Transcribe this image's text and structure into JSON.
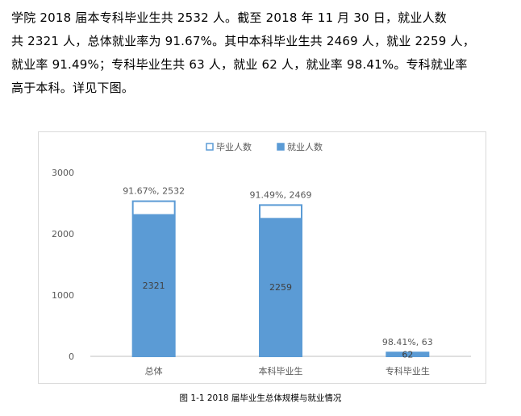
{
  "paragraph": {
    "lines": [
      "学院 2018 届本专科毕业生共 2532 人。截至 2018 年 11 月 30 日，就业人数",
      "共 2321 人，总体就业率为 91.67%。其中本科毕业生共 2469 人，就业 2259 人，",
      "就业率 91.49%；专科毕业生共 63 人，就业 62 人，就业率 98.41%。专科就业率",
      "高于本科。详见下图。"
    ]
  },
  "caption": "图 1-1   2018 届毕业生总体规模与就业情况",
  "colors": {
    "graduates_bar": "#ffffff",
    "employed_bar": "#5b9bd5",
    "outline": "#5b9bd5",
    "axis": "#bfbfbf",
    "text": "#595959"
  },
  "chart_data": {
    "type": "bar",
    "categories": [
      "总体",
      "本科毕业生",
      "专科毕业生"
    ],
    "series": [
      {
        "name": "毕业人数",
        "values": [
          2532,
          2469,
          63
        ]
      },
      {
        "name": "就业人数",
        "values": [
          2321,
          2259,
          62
        ]
      }
    ],
    "top_labels": [
      "91.67%, 2532",
      "91.49%, 2469",
      "98.41%, 63"
    ],
    "inner_labels": [
      "2321",
      "2259",
      "62"
    ],
    "y_ticks": [
      0,
      1000,
      2000,
      3000
    ],
    "ylim": [
      0,
      3000
    ],
    "legend_position": "top",
    "grid": false
  }
}
